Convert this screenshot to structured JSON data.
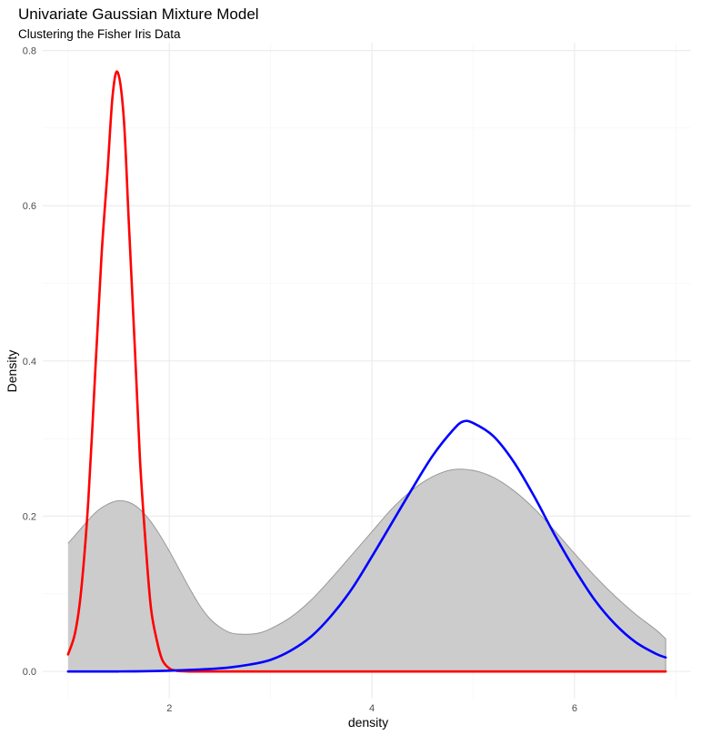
{
  "chart_data": {
    "type": "area",
    "title": "Univariate Gaussian Mixture Model",
    "subtitle": "Clustering the Fisher Iris Data",
    "xlabel": "density",
    "ylabel": "Density",
    "xlim": [
      0.75,
      7.15
    ],
    "ylim": [
      -0.035,
      0.81
    ],
    "x_ticks": [
      2,
      4,
      6
    ],
    "x_tick_labels": [
      "2",
      "4",
      "6"
    ],
    "y_ticks": [
      0.0,
      0.2,
      0.4,
      0.6,
      0.8
    ],
    "y_tick_labels": [
      "0.0",
      "0.2",
      "0.4",
      "0.6",
      "0.8"
    ],
    "grid": true,
    "legend": "none",
    "series": [
      {
        "kind": "density-area",
        "fill": "#cccccc",
        "stroke": "#999999",
        "points": [
          [
            1.0,
            0.165
          ],
          [
            1.1,
            0.18
          ],
          [
            1.2,
            0.195
          ],
          [
            1.3,
            0.208
          ],
          [
            1.4,
            0.216
          ],
          [
            1.5,
            0.22
          ],
          [
            1.6,
            0.218
          ],
          [
            1.7,
            0.21
          ],
          [
            1.8,
            0.196
          ],
          [
            1.9,
            0.177
          ],
          [
            2.0,
            0.155
          ],
          [
            2.1,
            0.131
          ],
          [
            2.2,
            0.107
          ],
          [
            2.3,
            0.085
          ],
          [
            2.4,
            0.068
          ],
          [
            2.5,
            0.057
          ],
          [
            2.6,
            0.05
          ],
          [
            2.7,
            0.048
          ],
          [
            2.8,
            0.048
          ],
          [
            2.9,
            0.05
          ],
          [
            3.0,
            0.055
          ],
          [
            3.2,
            0.07
          ],
          [
            3.4,
            0.092
          ],
          [
            3.6,
            0.12
          ],
          [
            3.8,
            0.15
          ],
          [
            4.0,
            0.18
          ],
          [
            4.2,
            0.21
          ],
          [
            4.4,
            0.234
          ],
          [
            4.6,
            0.251
          ],
          [
            4.8,
            0.26
          ],
          [
            5.0,
            0.259
          ],
          [
            5.2,
            0.25
          ],
          [
            5.4,
            0.233
          ],
          [
            5.6,
            0.21
          ],
          [
            5.8,
            0.182
          ],
          [
            6.0,
            0.152
          ],
          [
            6.2,
            0.123
          ],
          [
            6.4,
            0.097
          ],
          [
            6.6,
            0.074
          ],
          [
            6.8,
            0.054
          ],
          [
            6.9,
            0.042
          ]
        ]
      },
      {
        "kind": "component",
        "color": "#ff0000",
        "points": [
          [
            1.0,
            0.022
          ],
          [
            1.07,
            0.05
          ],
          [
            1.13,
            0.105
          ],
          [
            1.2,
            0.22
          ],
          [
            1.27,
            0.39
          ],
          [
            1.33,
            0.535
          ],
          [
            1.39,
            0.645
          ],
          [
            1.44,
            0.742
          ],
          [
            1.49,
            0.772
          ],
          [
            1.55,
            0.713
          ],
          [
            1.6,
            0.578
          ],
          [
            1.66,
            0.415
          ],
          [
            1.71,
            0.273
          ],
          [
            1.77,
            0.157
          ],
          [
            1.82,
            0.08
          ],
          [
            1.88,
            0.038
          ],
          [
            1.93,
            0.015
          ],
          [
            1.99,
            0.005
          ],
          [
            2.05,
            0.0015
          ],
          [
            2.2,
            0.0
          ],
          [
            3.0,
            0.0
          ],
          [
            4.0,
            0.0
          ],
          [
            5.0,
            0.0
          ],
          [
            6.0,
            0.0
          ],
          [
            6.9,
            0.0
          ]
        ]
      },
      {
        "kind": "component",
        "color": "#0000ff",
        "points": [
          [
            1.0,
            0.0
          ],
          [
            1.5,
            0.0
          ],
          [
            2.0,
            0.001
          ],
          [
            2.5,
            0.004
          ],
          [
            2.8,
            0.009
          ],
          [
            3.0,
            0.015
          ],
          [
            3.2,
            0.027
          ],
          [
            3.4,
            0.045
          ],
          [
            3.6,
            0.072
          ],
          [
            3.8,
            0.106
          ],
          [
            4.0,
            0.148
          ],
          [
            4.2,
            0.192
          ],
          [
            4.4,
            0.236
          ],
          [
            4.6,
            0.278
          ],
          [
            4.8,
            0.311
          ],
          [
            4.9,
            0.322
          ],
          [
            5.0,
            0.32
          ],
          [
            5.2,
            0.303
          ],
          [
            5.4,
            0.27
          ],
          [
            5.6,
            0.226
          ],
          [
            5.8,
            0.177
          ],
          [
            6.0,
            0.132
          ],
          [
            6.2,
            0.092
          ],
          [
            6.4,
            0.061
          ],
          [
            6.6,
            0.038
          ],
          [
            6.8,
            0.023
          ],
          [
            6.9,
            0.018
          ]
        ]
      }
    ]
  }
}
